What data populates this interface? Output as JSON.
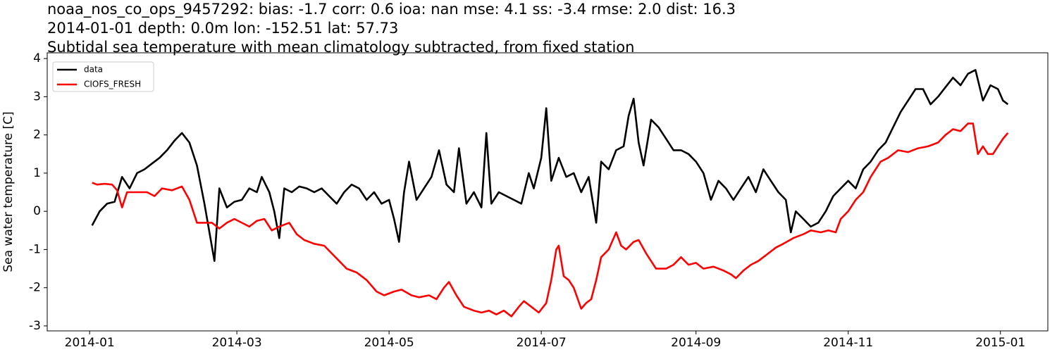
{
  "chart_data": {
    "type": "line",
    "title": [
      "noaa_nos_co_ops_9457292: bias: -1.7  corr: 0.6  ioa: nan  mse: 4.1  ss: -3.4  rmse: 2.0  dist: 16.3",
      "2014-01-01 depth: 0.0m lon: -152.51 lat: 57.73",
      "Subtidal sea temperature with mean climatology subtracted, from fixed station"
    ],
    "y_label": "Sea water temperature [C]",
    "xlim": [
      -17,
      384
    ],
    "xticks": [
      {
        "value": 0,
        "label": "2014-01"
      },
      {
        "value": 59,
        "label": "2014-03"
      },
      {
        "value": 120,
        "label": "2014-05"
      },
      {
        "value": 181,
        "label": "2014-07"
      },
      {
        "value": 243,
        "label": "2014-09"
      },
      {
        "value": 304,
        "label": "2014-11"
      },
      {
        "value": 365,
        "label": "2015-01"
      }
    ],
    "ylim": [
      -3.13,
      4.15
    ],
    "yticks": [
      -3,
      -2,
      -1,
      0,
      1,
      2,
      3,
      4
    ],
    "grid": false,
    "legend": "upper left",
    "series": [
      {
        "name": "data",
        "color": "#000000",
        "x": [
          1,
          4,
          7,
          10,
          13,
          16,
          19,
          22,
          25,
          28,
          31,
          34,
          37,
          40,
          43,
          46,
          48,
          50,
          52,
          55,
          58,
          61,
          64,
          67,
          69,
          72,
          74,
          76,
          78,
          81,
          84,
          87,
          90,
          93,
          96,
          99,
          102,
          105,
          108,
          111,
          114,
          117,
          120,
          122,
          124,
          126,
          128,
          131,
          134,
          137,
          140,
          143,
          146,
          148,
          151,
          154,
          157,
          159,
          161,
          164,
          167,
          170,
          173,
          176,
          178,
          181,
          183,
          185,
          188,
          191,
          194,
          197,
          200,
          203,
          205,
          208,
          211,
          214,
          216,
          218,
          220,
          222,
          225,
          228,
          231,
          234,
          237,
          240,
          243,
          246,
          249,
          252,
          255,
          258,
          261,
          264,
          267,
          270,
          273,
          276,
          279,
          281,
          283,
          286,
          289,
          292,
          295,
          298,
          301,
          304,
          307,
          310,
          313,
          316,
          319,
          322,
          325,
          328,
          331,
          334,
          337,
          340,
          343,
          346,
          349,
          352,
          355,
          358,
          361,
          364,
          366,
          368
        ],
        "values": [
          -0.37,
          0.0,
          0.2,
          0.25,
          0.9,
          0.6,
          1.0,
          1.1,
          1.25,
          1.4,
          1.6,
          1.85,
          2.05,
          1.8,
          1.2,
          0.2,
          -0.55,
          -1.3,
          0.6,
          0.1,
          0.25,
          0.3,
          0.6,
          0.5,
          0.9,
          0.5,
          0.0,
          -0.7,
          0.6,
          0.5,
          0.65,
          0.6,
          0.5,
          0.6,
          0.4,
          0.2,
          0.5,
          0.7,
          0.6,
          0.3,
          0.5,
          0.2,
          0.3,
          -0.2,
          -0.8,
          0.5,
          1.3,
          0.3,
          0.6,
          0.9,
          1.6,
          0.7,
          0.5,
          1.65,
          0.2,
          0.5,
          0.1,
          2.05,
          0.2,
          0.5,
          0.4,
          0.3,
          0.2,
          1.0,
          0.6,
          1.4,
          2.7,
          0.8,
          1.4,
          0.9,
          1.0,
          0.5,
          0.9,
          -0.3,
          1.3,
          1.1,
          1.6,
          1.7,
          2.5,
          2.95,
          1.8,
          1.2,
          2.4,
          2.2,
          1.9,
          1.6,
          1.6,
          1.5,
          1.3,
          1.0,
          0.3,
          0.8,
          0.6,
          0.3,
          0.6,
          0.9,
          0.5,
          1.1,
          0.8,
          0.5,
          0.3,
          -0.55,
          0.0,
          -0.2,
          -0.4,
          -0.3,
          0.0,
          0.4,
          0.6,
          0.8,
          0.6,
          1.1,
          1.3,
          1.6,
          1.8,
          2.2,
          2.6,
          2.9,
          3.2,
          3.2,
          2.8,
          3.0,
          3.25,
          3.5,
          3.3,
          3.6,
          3.7,
          2.9,
          3.3,
          3.2,
          2.9,
          2.8
        ]
      },
      {
        "name": "CIOFS_FRESH",
        "color": "#ff0000",
        "x": [
          1,
          3,
          6,
          9,
          11,
          13,
          15,
          19,
          23,
          26,
          29,
          33,
          37,
          40,
          43,
          46,
          49,
          52,
          55,
          58,
          61,
          64,
          67,
          70,
          73,
          76,
          80,
          83,
          86,
          90,
          94,
          97,
          100,
          103,
          107,
          111,
          115,
          118,
          122,
          125,
          129,
          132,
          136,
          139,
          142,
          144,
          147,
          150,
          154,
          157,
          160,
          163,
          166,
          169,
          172,
          174,
          177,
          180,
          183,
          185,
          187,
          188,
          190,
          192,
          194,
          197,
          199,
          201,
          203,
          205,
          208,
          211,
          213,
          215,
          218,
          220,
          223,
          227,
          231,
          234,
          237,
          240,
          243,
          246,
          250,
          254,
          257,
          259,
          262,
          265,
          268,
          272,
          275,
          278,
          282,
          286,
          289,
          293,
          296,
          299,
          301,
          304,
          307,
          310,
          313,
          317,
          320,
          324,
          328,
          332,
          336,
          340,
          343,
          346,
          349,
          352,
          354,
          356,
          358,
          360,
          362,
          364,
          366,
          368
        ],
        "values": [
          0.75,
          0.7,
          0.72,
          0.7,
          0.55,
          0.1,
          0.5,
          0.5,
          0.5,
          0.4,
          0.6,
          0.55,
          0.65,
          0.3,
          -0.3,
          -0.3,
          -0.3,
          -0.45,
          -0.3,
          -0.2,
          -0.3,
          -0.4,
          -0.25,
          -0.2,
          -0.5,
          -0.4,
          -0.3,
          -0.6,
          -0.75,
          -0.85,
          -0.9,
          -1.1,
          -1.3,
          -1.5,
          -1.6,
          -1.8,
          -2.1,
          -2.2,
          -2.1,
          -2.05,
          -2.2,
          -2.25,
          -2.2,
          -2.3,
          -2.0,
          -1.85,
          -2.2,
          -2.5,
          -2.6,
          -2.65,
          -2.6,
          -2.7,
          -2.6,
          -2.75,
          -2.5,
          -2.35,
          -2.5,
          -2.65,
          -2.4,
          -1.8,
          -1.0,
          -0.9,
          -1.7,
          -1.8,
          -2.0,
          -2.55,
          -2.4,
          -2.3,
          -1.8,
          -1.2,
          -1.0,
          -0.55,
          -0.9,
          -1.0,
          -0.8,
          -0.75,
          -1.1,
          -1.5,
          -1.5,
          -1.4,
          -1.2,
          -1.4,
          -1.35,
          -1.5,
          -1.45,
          -1.55,
          -1.65,
          -1.75,
          -1.55,
          -1.4,
          -1.3,
          -1.1,
          -0.95,
          -0.85,
          -0.7,
          -0.6,
          -0.5,
          -0.55,
          -0.5,
          -0.55,
          -0.2,
          0.0,
          0.3,
          0.5,
          0.9,
          1.3,
          1.4,
          1.6,
          1.55,
          1.65,
          1.7,
          1.8,
          2.0,
          2.15,
          2.1,
          2.3,
          2.3,
          1.5,
          1.7,
          1.5,
          1.5,
          1.7,
          1.9,
          2.05
        ]
      }
    ]
  }
}
